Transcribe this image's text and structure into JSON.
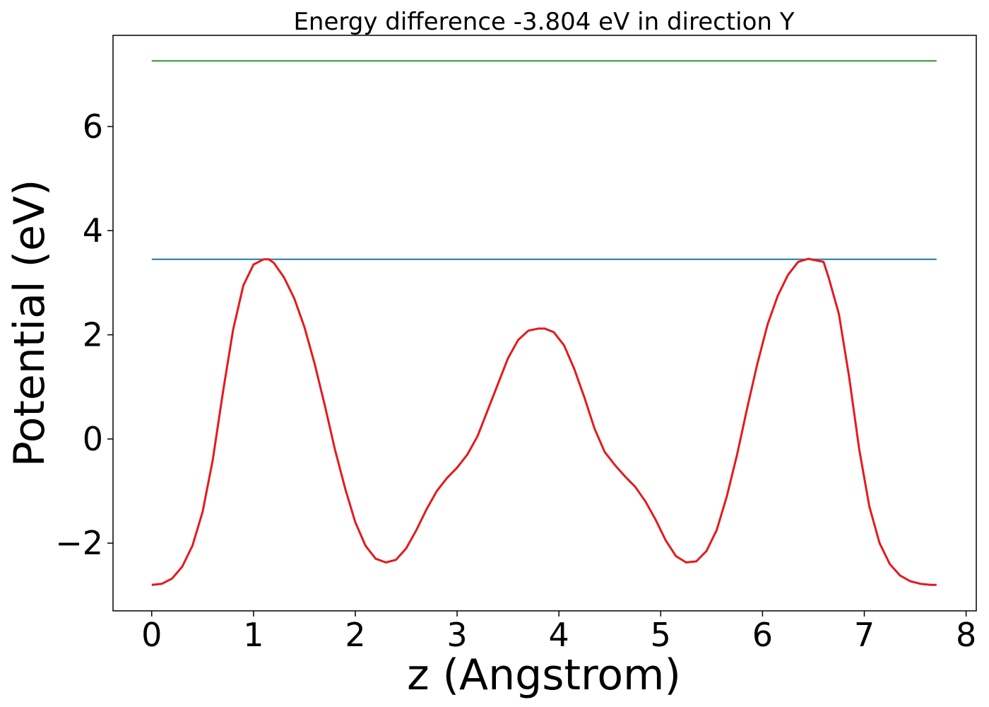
{
  "chart_data": {
    "type": "line",
    "title": "Energy difference -3.804 eV in direction Y",
    "xlabel": "z (Angstrom)",
    "ylabel": "Potential (eV)",
    "xlim": [
      -0.38,
      8.1
    ],
    "ylim": [
      -3.3,
      7.75
    ],
    "xticks": [
      0,
      1,
      2,
      3,
      4,
      5,
      6,
      7,
      8
    ],
    "xtick_labels": [
      "0",
      "1",
      "2",
      "3",
      "4",
      "5",
      "6",
      "7",
      "8"
    ],
    "yticks": [
      -2,
      0,
      2,
      4,
      6
    ],
    "ytick_labels": [
      "−2",
      "0",
      "2",
      "4",
      "6"
    ],
    "grid": false,
    "series": [
      {
        "color": "#2ca02c",
        "x": [
          0,
          7.71
        ],
        "y": [
          7.26,
          7.26
        ]
      },
      {
        "color": "#1f77b4",
        "x": [
          0,
          7.71
        ],
        "y": [
          3.45,
          3.45
        ]
      },
      {
        "color": "#e41a1c",
        "x": [
          0,
          0.1,
          0.2,
          0.3,
          0.4,
          0.5,
          0.6,
          0.7,
          0.8,
          0.9,
          1.0,
          1.1,
          1.15,
          1.2,
          1.3,
          1.4,
          1.5,
          1.6,
          1.7,
          1.8,
          1.9,
          2.0,
          2.1,
          2.2,
          2.3,
          2.4,
          2.5,
          2.6,
          2.7,
          2.8,
          2.9,
          3.0,
          3.1,
          3.2,
          3.3,
          3.4,
          3.5,
          3.6,
          3.7,
          3.8,
          3.86,
          3.95,
          4.05,
          4.15,
          4.25,
          4.35,
          4.45,
          4.55,
          4.65,
          4.75,
          4.85,
          4.95,
          5.05,
          5.15,
          5.25,
          5.35,
          5.45,
          5.55,
          5.65,
          5.75,
          5.85,
          5.95,
          6.05,
          6.15,
          6.25,
          6.35,
          6.45,
          6.55,
          6.6,
          6.65,
          6.75,
          6.85,
          6.95,
          7.05,
          7.15,
          7.25,
          7.35,
          7.45,
          7.55,
          7.65,
          7.71
        ],
        "y": [
          -2.8,
          -2.78,
          -2.68,
          -2.45,
          -2.05,
          -1.4,
          -0.4,
          0.9,
          2.1,
          2.95,
          3.35,
          3.45,
          3.45,
          3.38,
          3.1,
          2.7,
          2.15,
          1.45,
          0.65,
          -0.2,
          -0.95,
          -1.6,
          -2.05,
          -2.3,
          -2.37,
          -2.32,
          -2.1,
          -1.75,
          -1.35,
          -1.0,
          -0.75,
          -0.55,
          -0.3,
          0.05,
          0.55,
          1.05,
          1.55,
          1.9,
          2.08,
          2.12,
          2.12,
          2.05,
          1.8,
          1.35,
          0.8,
          0.2,
          -0.25,
          -0.5,
          -0.72,
          -0.92,
          -1.2,
          -1.55,
          -1.95,
          -2.25,
          -2.37,
          -2.35,
          -2.15,
          -1.75,
          -1.1,
          -0.3,
          0.6,
          1.45,
          2.2,
          2.75,
          3.15,
          3.4,
          3.46,
          3.42,
          3.4,
          3.1,
          2.4,
          1.2,
          -0.2,
          -1.3,
          -2.0,
          -2.4,
          -2.62,
          -2.73,
          -2.78,
          -2.8,
          -2.8
        ]
      }
    ]
  }
}
